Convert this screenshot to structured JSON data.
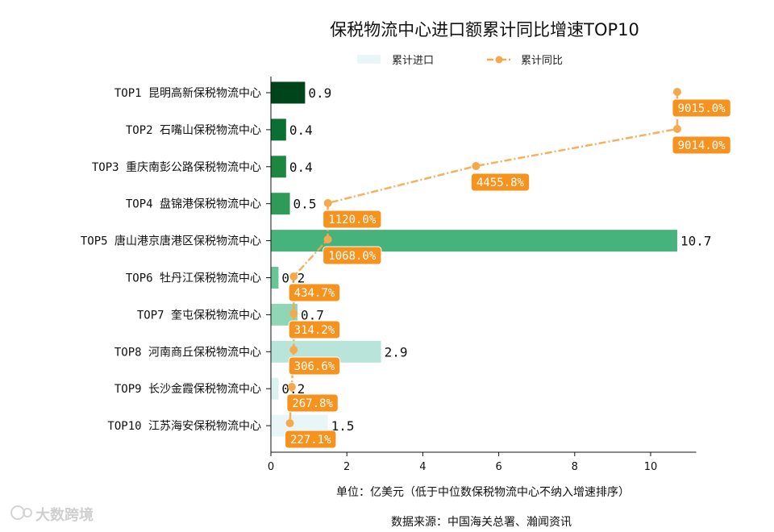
{
  "chart_data": {
    "type": "bar",
    "orientation": "horizontal",
    "title": "保税物流中心进口额累计同比增速TOP10",
    "categories": [
      "TOP1 昆明高新保税物流中心",
      "TOP2 石嘴山保税物流中心",
      "TOP3 重庆南彭公路保税物流中心",
      "TOP4 盘锦港保税物流中心",
      "TOP5 唐山港京唐港区保税物流中心",
      "TOP6 牡丹江保税物流中心",
      "TOP7 奎屯保税物流中心",
      "TOP8 河南商丘保税物流中心",
      "TOP9 长沙金霞保税物流中心",
      "TOP10 江苏海安保税物流中心"
    ],
    "series": [
      {
        "name": "累计进口",
        "type": "bar",
        "values": [
          0.9,
          0.4,
          0.4,
          0.5,
          10.7,
          0.2,
          0.7,
          2.9,
          0.2,
          1.5
        ],
        "value_labels": [
          "0.9",
          "0.4",
          "0.4",
          "0.5",
          "10.7",
          "0.2",
          "0.7",
          "2.9",
          "0.2",
          "1.5"
        ],
        "colors": [
          "#00441b",
          "#0a6f32",
          "#1b873f",
          "#2e9b58",
          "#46b37c",
          "#6ac596",
          "#90d5b5",
          "#b9e4d9",
          "#dbf1f0",
          "#e8f6f8"
        ]
      },
      {
        "name": "累计同比",
        "type": "line",
        "color": "#f5a94d",
        "x": [
          10.7,
          10.7,
          5.4,
          1.5,
          1.5,
          0.6,
          0.6,
          0.6,
          0.55,
          0.5
        ],
        "values": [
          9015.0,
          9014.0,
          4455.8,
          1120.0,
          1068.0,
          434.7,
          314.2,
          306.6,
          267.8,
          227.1
        ],
        "value_labels": [
          "9015.0%",
          "9014.0%",
          "4455.8%",
          "1120.0%",
          "1068.0%",
          "434.7%",
          "314.2%",
          "306.6%",
          "267.8%",
          "227.1%"
        ]
      }
    ],
    "xlim": [
      0,
      11.2
    ],
    "xticks": [
      0,
      2,
      4,
      6,
      8,
      10
    ],
    "xlabel": "单位：亿美元（低于中位数保税物流中心不纳入增速排序）",
    "legend_position": "top-center",
    "grid": false,
    "badge_color": "#f6921e"
  },
  "source_note": "数据来源：中国海关总署、瀚闻资讯",
  "watermark": "大数跨境"
}
